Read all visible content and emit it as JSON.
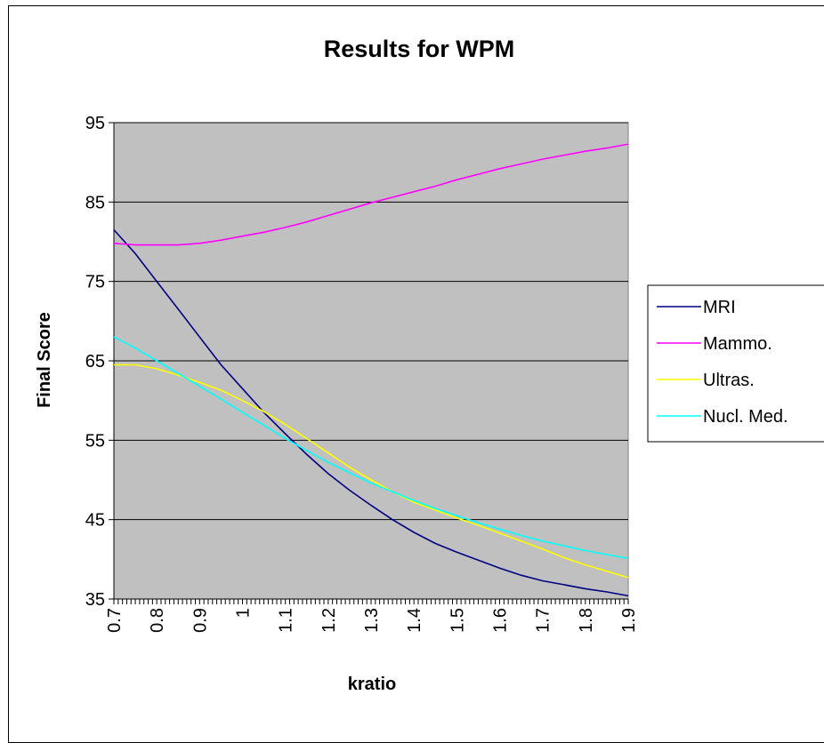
{
  "chart_data": {
    "type": "line",
    "title": "Results for WPM",
    "xlabel": "kratio",
    "ylabel": "Final Score",
    "xlim": [
      0.7,
      1.9
    ],
    "ylim": [
      35,
      95
    ],
    "x_ticks": [
      "0.7",
      "0.8",
      "0.9",
      "1",
      "1.1",
      "1.2",
      "1.3",
      "1.4",
      "1.5",
      "1.6",
      "1.7",
      "1.8",
      "1.9"
    ],
    "y_ticks": [
      "35",
      "45",
      "55",
      "65",
      "75",
      "85",
      "95"
    ],
    "grid": "horizontal major gridlines",
    "plot_background": "#c0c0c0",
    "legend_position": "right",
    "x": [
      0.7,
      0.75,
      0.8,
      0.85,
      0.9,
      0.95,
      1.0,
      1.05,
      1.1,
      1.15,
      1.2,
      1.25,
      1.3,
      1.35,
      1.4,
      1.45,
      1.5,
      1.55,
      1.6,
      1.65,
      1.7,
      1.75,
      1.8,
      1.85,
      1.9
    ],
    "series": [
      {
        "name": "MRI",
        "color": "#000080",
        "values": [
          81.5,
          78.5,
          75.0,
          71.5,
          68.0,
          64.5,
          61.5,
          58.5,
          55.8,
          53.2,
          50.8,
          48.7,
          46.8,
          45.0,
          43.4,
          42.0,
          40.9,
          39.9,
          38.9,
          38.0,
          37.3,
          36.8,
          36.3,
          35.9,
          35.4
        ]
      },
      {
        "name": "Mammo.",
        "color": "#ff00ff",
        "values": [
          79.8,
          79.6,
          79.6,
          79.6,
          79.8,
          80.2,
          80.7,
          81.2,
          81.8,
          82.5,
          83.3,
          84.1,
          84.9,
          85.6,
          86.3,
          87.0,
          87.8,
          88.5,
          89.2,
          89.8,
          90.4,
          90.9,
          91.4,
          91.8,
          92.3
        ]
      },
      {
        "name": "Ultras.",
        "color": "#ffff00",
        "values": [
          64.5,
          64.5,
          64.0,
          63.2,
          62.3,
          61.3,
          60.0,
          58.6,
          57.0,
          55.2,
          53.4,
          51.6,
          50.0,
          48.5,
          47.2,
          46.2,
          45.2,
          44.3,
          43.3,
          42.3,
          41.3,
          40.2,
          39.3,
          38.5,
          37.7
        ]
      },
      {
        "name": "Nucl. Med.",
        "color": "#00ffff",
        "values": [
          68.0,
          66.6,
          65.0,
          63.4,
          61.8,
          60.2,
          58.5,
          56.9,
          55.2,
          53.7,
          52.2,
          50.9,
          49.6,
          48.5,
          47.4,
          46.4,
          45.5,
          44.6,
          43.8,
          43.0,
          42.3,
          41.7,
          41.1,
          40.6,
          40.1
        ]
      }
    ]
  }
}
